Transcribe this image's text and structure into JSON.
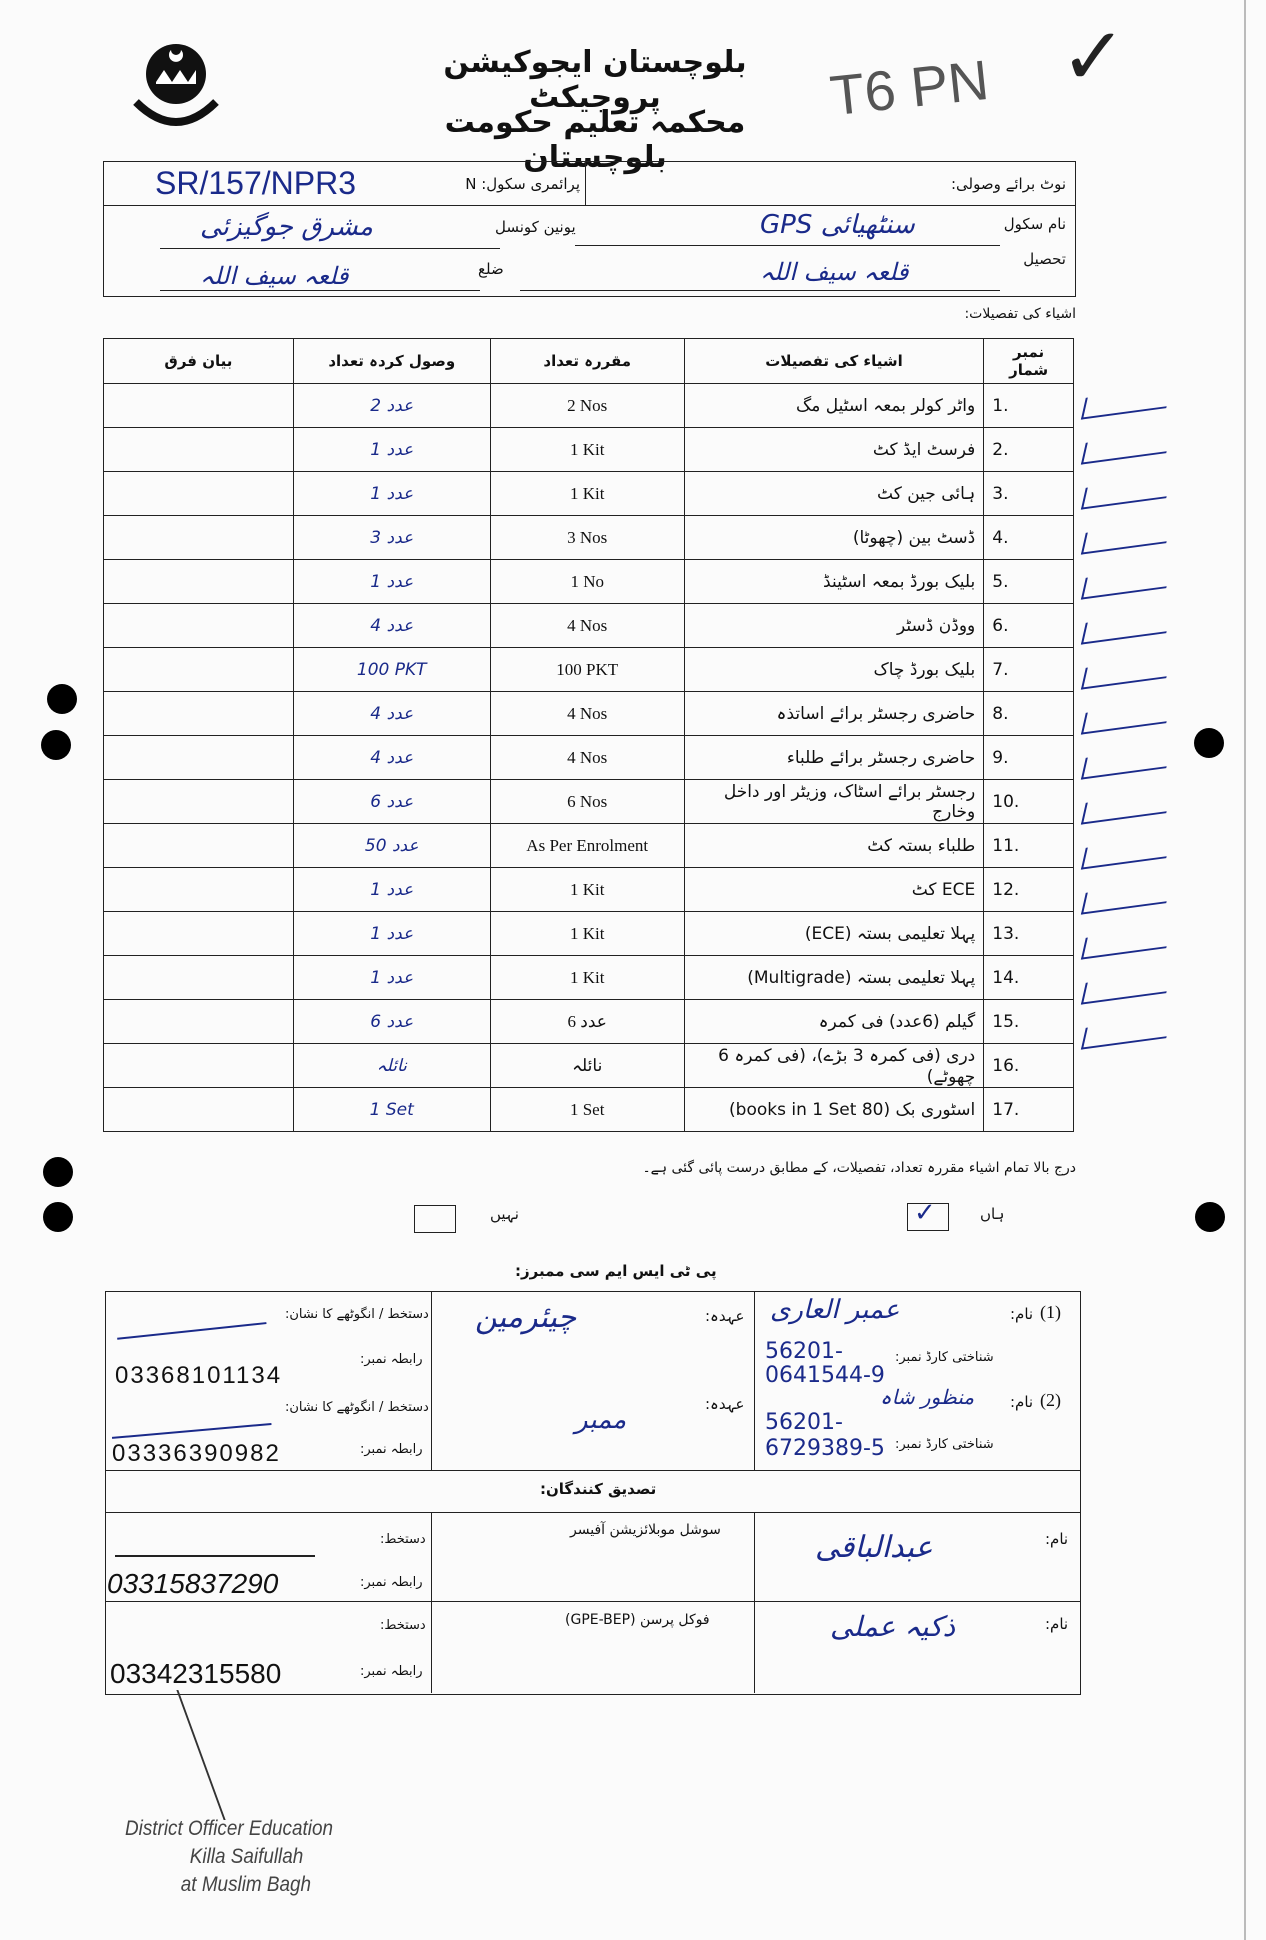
{
  "header": {
    "title_line1": "بلوچستان ایجوکیشن پروجیکٹ",
    "title_line2": "محکمہ تعلیم حکومت بلوچستان",
    "pencil_note": "T6 PN",
    "check_mark": "✓",
    "logo_text": "حکومت بلوچستان"
  },
  "school_info": {
    "receipt_note_label": "نوٹ برائے وصولی:",
    "primary_school_label": "پرائمری سکول: N",
    "primary_school_value": "SR/157/NPR3",
    "school_name_label": "نام سکول",
    "school_name_value": "سنٹھیائی GPS",
    "union_council_label": "یونین کونسل",
    "union_council_value": "مشرق جوگیزئی",
    "tehsil_label": "تحصیل",
    "tehsil_value": "قلعہ سیف اللہ",
    "district_label": "ضلع",
    "district_value": "قلعہ سیف اللہ",
    "items_details_label": "اشیاء کی تفصیلات:"
  },
  "items_table": {
    "headers": {
      "no": "نمبر شمار",
      "item": "اشیاء کی تفصیلات",
      "prescribed": "مقررہ تعداد",
      "received": "وصول کردہ تعداد",
      "remarks": "بیان فرق"
    },
    "rows": [
      {
        "no": "1.",
        "item": "واٹر کولر بمعہ اسٹیل مگ",
        "prescribed": "2 Nos",
        "received": "2 عدد",
        "remarks": ""
      },
      {
        "no": "2.",
        "item": "فرسٹ ایڈ کٹ",
        "prescribed": "1 Kit",
        "received": "1 عدد",
        "remarks": ""
      },
      {
        "no": "3.",
        "item": "ہائی جین کٹ",
        "prescribed": "1 Kit",
        "received": "1 عدد",
        "remarks": ""
      },
      {
        "no": "4.",
        "item": "ڈسٹ بین (چھوٹا)",
        "prescribed": "3 Nos",
        "received": "3 عدد",
        "remarks": ""
      },
      {
        "no": "5.",
        "item": "بلیک بورڈ بمعہ اسٹینڈ",
        "prescribed": "1 No",
        "received": "1 عدد",
        "remarks": ""
      },
      {
        "no": "6.",
        "item": "ووڈن ڈسٹر",
        "prescribed": "4 Nos",
        "received": "4 عدد",
        "remarks": ""
      },
      {
        "no": "7.",
        "item": "بلیک بورڈ چاک",
        "prescribed": "100 PKT",
        "received": "100 PKT",
        "remarks": ""
      },
      {
        "no": "8.",
        "item": "حاضری رجسٹر برائے اساتذہ",
        "prescribed": "4 Nos",
        "received": "4 عدد",
        "remarks": ""
      },
      {
        "no": "9.",
        "item": "حاضری رجسٹر برائے طلباء",
        "prescribed": "4 Nos",
        "received": "4 عدد",
        "remarks": ""
      },
      {
        "no": "10.",
        "item": "رجسٹر برائے اسٹاک، وزیٹر اور داخل وخارج",
        "prescribed": "6 Nos",
        "received": "6 عدد",
        "remarks": ""
      },
      {
        "no": "11.",
        "item": "طلباء بستہ کٹ",
        "prescribed": "As Per Enrolment",
        "received": "50 عدد",
        "remarks": ""
      },
      {
        "no": "12.",
        "item": "ECE کٹ",
        "prescribed": "1 Kit",
        "received": "1 عدد",
        "remarks": ""
      },
      {
        "no": "13.",
        "item": "پہلا تعلیمی بستہ (ECE)",
        "prescribed": "1 Kit",
        "received": "1 عدد",
        "remarks": ""
      },
      {
        "no": "14.",
        "item": "پہلا تعلیمی بستہ (Multigrade)",
        "prescribed": "1 Kit",
        "received": "1 عدد",
        "remarks": ""
      },
      {
        "no": "15.",
        "item": "گیلم (6عدد) فی کمرہ",
        "prescribed": "6 عدد",
        "received": "6 عدد",
        "remarks": ""
      },
      {
        "no": "16.",
        "item": "دری (فی کمرہ 3 بڑے)، (فی کمرہ 6 چھوٹے)",
        "prescribed": "نائلہ",
        "received": "نائلہ",
        "remarks": ""
      },
      {
        "no": "17.",
        "item": "اسٹوری بک (80 books in 1 Set)",
        "prescribed": "1 Set",
        "received": "1 Set",
        "remarks": ""
      }
    ]
  },
  "confirmation": {
    "statement": "درج بالا تمام اشیاء مقررہ تعداد، تفصیلات، کے مطابق درست پائی گئی ہے۔",
    "yes_label": "ہاں",
    "no_label": "نہیں",
    "yes_checked": true,
    "no_checked": false
  },
  "ptsmc": {
    "heading": "پی ٹی ایس ایم سی ممبرز:",
    "members": [
      {
        "index": "(1)",
        "name_label": "نام:",
        "name": "عمبر العاری",
        "cnic_label": "شناختی کارڈ نمبر:",
        "cnic": "56201-0641544-9",
        "designation_label": "عہدہ:",
        "designation": "چیئرمین",
        "signature_label": "دستخط / انگوٹھے کا نشان:",
        "phone_label": "رابطہ نمبر:",
        "phone": "03368101134"
      },
      {
        "index": "(2)",
        "name_label": "نام:",
        "name": "منظور شاہ",
        "cnic_label": "شناختی کارڈ نمبر:",
        "cnic": "56201-6729389-5",
        "designation_label": "عہدہ:",
        "designation": "ممبر",
        "signature_label": "دستخط / انگوٹھے کا نشان:",
        "phone_label": "رابطہ نمبر:",
        "phone": "03336390982"
      }
    ]
  },
  "verifiers": {
    "heading": "تصدیق کنندگان:",
    "rows": [
      {
        "name_label": "نام:",
        "name": "عبدالباقی",
        "designation": "سوشل موبلائزیشن آفیسر",
        "signature_label": "دستخط:",
        "phone_label": "رابطہ نمبر:",
        "phone": "03315837290"
      },
      {
        "name_label": "نام:",
        "name": "ذکیہ عملی",
        "designation": "فوکل پرسن (GPE-BEP)",
        "signature_label": "دستخط:",
        "phone_label": "رابطہ نمبر:",
        "phone": "03342315580"
      }
    ]
  },
  "stamp": {
    "line1": "District Officer Education",
    "line2": "Killa Saifullah",
    "line3": "at Muslim Bagh"
  }
}
